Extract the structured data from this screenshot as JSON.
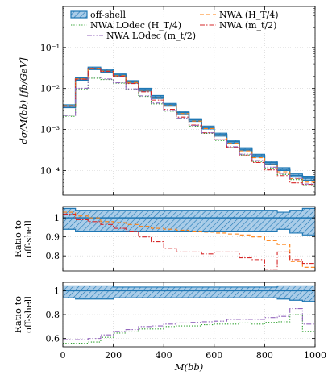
{
  "chart_data": {
    "type": "line",
    "step": true,
    "x_edges": [
      0,
      50,
      100,
      150,
      200,
      250,
      300,
      350,
      400,
      450,
      500,
      550,
      600,
      650,
      700,
      750,
      800,
      850,
      900,
      950,
      1000
    ],
    "xlabel": "M(bb)",
    "xlim": [
      0,
      1000
    ],
    "xticks": [
      0,
      200,
      400,
      600,
      800,
      1000
    ],
    "legend_location": "top",
    "grid": true,
    "colors": {
      "offshell": "#1f77b4",
      "offshell_fill": "#a9cce8",
      "nwa_ht4": "#ff7f0e",
      "nwa_mt2": "#d62728",
      "lodec_ht4": "#2ca02c",
      "lodec_mt2": "#9467bd"
    },
    "panels": [
      {
        "id": "main",
        "ylabel": "dσ/M(bb) [fb/GeV]",
        "log": true,
        "ylim": [
          2.5e-05,
          1.0
        ],
        "yticks": [
          {
            "value": 0.0001,
            "label": "10⁻⁴"
          },
          {
            "value": 0.001,
            "label": "10⁻³"
          },
          {
            "value": 0.01,
            "label": "10⁻²"
          },
          {
            "value": 0.1,
            "label": "10⁻¹"
          }
        ],
        "series": [
          {
            "key": "offshell",
            "name": "off-shell",
            "style": "band",
            "values": [
              0.0037,
              0.017,
              0.031,
              0.027,
              0.021,
              0.0145,
              0.0094,
              0.0062,
              0.004,
              0.0026,
              0.0017,
              0.00112,
              0.00075,
              0.0005,
              0.00033,
              0.00023,
              0.000155,
              0.000108,
              7.5e-05,
              6.5e-05
            ],
            "band_low": [
              0.0034,
              0.0158,
              0.0288,
              0.025,
              0.0195,
              0.0135,
              0.0087,
              0.0057,
              0.0037,
              0.0024,
              0.00157,
              0.00103,
              0.00069,
              0.00046,
              0.000305,
              0.000212,
              0.000143,
              0.0001,
              6.9e-05,
              5.8e-05
            ],
            "band_high": [
              0.004,
              0.0183,
              0.0332,
              0.029,
              0.0225,
              0.0155,
              0.0101,
              0.0067,
              0.0043,
              0.0028,
              0.00183,
              0.00121,
              0.00081,
              0.00054,
              0.000357,
              0.000248,
              0.000168,
              0.000117,
              8.2e-05,
              7.2e-05
            ]
          },
          {
            "key": "nwa_ht4",
            "name": "NWA (H_T/4)",
            "style": "dashed",
            "values": [
              0.0038,
              0.0172,
              0.031,
              0.0265,
              0.0205,
              0.014,
              0.0091,
              0.0059,
              0.0038,
              0.00245,
              0.0016,
              0.00105,
              0.0007,
              0.00046,
              0.0003,
              0.000205,
              0.000138,
              9.3e-05,
              6.3e-05,
              5.2e-05
            ]
          },
          {
            "key": "lodec_ht4",
            "name": "NWA LOdec (H_T/4)",
            "style": "dotted",
            "values": [
              0.0021,
              0.0095,
              0.0178,
              0.0165,
              0.0135,
              0.0095,
              0.0064,
              0.0042,
              0.0028,
              0.00183,
              0.0012,
              0.0008,
              0.00054,
              0.00036,
              0.00024,
              0.000166,
              0.000114,
              8e-05,
              6e-05,
              4.3e-05
            ]
          },
          {
            "key": "nwa_mt2",
            "name": "NWA (m_t/2)",
            "style": "dashdot",
            "values": [
              0.0037,
              0.0168,
              0.0305,
              0.026,
              0.0198,
              0.0132,
              0.0083,
              0.0052,
              0.0031,
              0.002,
              0.00128,
              0.00083,
              0.00056,
              0.00036,
              0.00023,
              0.000157,
              0.000103,
              7.5e-05,
              5e-05,
              4.6e-05
            ]
          },
          {
            "key": "lodec_mt2",
            "name": "NWA LOdec (m_t/2)",
            "style": "dashdotdot",
            "values": [
              0.0022,
              0.0101,
              0.019,
              0.017,
              0.0138,
              0.0098,
              0.0066,
              0.0044,
              0.0029,
              0.0019,
              0.00125,
              0.00083,
              0.00056,
              0.00038,
              0.00025,
              0.000175,
              0.00012,
              8.5e-05,
              6.4e-05,
              4.7e-05
            ]
          }
        ]
      },
      {
        "id": "ratio1",
        "ylabel": "Ratio to off-shell",
        "log": false,
        "ylim": [
          0.72,
          1.06
        ],
        "yticks": [
          {
            "value": 0.8,
            "label": "0.8"
          },
          {
            "value": 0.9,
            "label": "0.9"
          },
          {
            "value": 1.0,
            "label": "1"
          }
        ],
        "series": [
          {
            "key": "offshell",
            "style": "band",
            "values": [
              1,
              1,
              1,
              1,
              1,
              1,
              1,
              1,
              1,
              1,
              1,
              1,
              1,
              1,
              1,
              1,
              1,
              1,
              1,
              1
            ],
            "band_low": [
              0.94,
              0.93,
              0.93,
              0.93,
              0.93,
              0.93,
              0.93,
              0.93,
              0.93,
              0.93,
              0.93,
              0.93,
              0.93,
              0.93,
              0.93,
              0.93,
              0.93,
              0.94,
              0.92,
              0.91
            ],
            "band_high": [
              1.05,
              1.04,
              1.04,
              1.04,
              1.04,
              1.04,
              1.04,
              1.04,
              1.04,
              1.04,
              1.04,
              1.04,
              1.04,
              1.04,
              1.04,
              1.04,
              1.04,
              1.03,
              1.04,
              1.05
            ]
          },
          {
            "key": "nwa_ht4",
            "style": "dashed",
            "values": [
              1.03,
              1.01,
              1.0,
              0.98,
              0.975,
              0.965,
              0.955,
              0.945,
              0.94,
              0.935,
              0.93,
              0.925,
              0.92,
              0.915,
              0.91,
              0.9,
              0.88,
              0.86,
              0.77,
              0.74
            ]
          },
          {
            "key": "nwa_mt2",
            "style": "dashdot",
            "values": [
              1.02,
              0.99,
              0.98,
              0.965,
              0.945,
              0.93,
              0.9,
              0.875,
              0.84,
              0.82,
              0.82,
              0.81,
              0.82,
              0.82,
              0.79,
              0.78,
              0.73,
              0.82,
              0.78,
              0.76
            ]
          }
        ]
      },
      {
        "id": "ratio2",
        "ylabel": "Ratio to off-shell",
        "log": false,
        "ylim": [
          0.53,
          1.07
        ],
        "yticks": [
          {
            "value": 0.6,
            "label": "0.6"
          },
          {
            "value": 0.8,
            "label": "0.8"
          },
          {
            "value": 1.0,
            "label": "1"
          }
        ],
        "series": [
          {
            "key": "offshell",
            "style": "band",
            "values": [
              1,
              1,
              1,
              1,
              1,
              1,
              1,
              1,
              1,
              1,
              1,
              1,
              1,
              1,
              1,
              1,
              1,
              1,
              1,
              1
            ],
            "band_low": [
              0.94,
              0.93,
              0.93,
              0.93,
              0.94,
              0.94,
              0.94,
              0.94,
              0.94,
              0.94,
              0.94,
              0.94,
              0.94,
              0.94,
              0.94,
              0.94,
              0.94,
              0.93,
              0.92,
              0.91
            ],
            "band_high": [
              1.04,
              1.04,
              1.04,
              1.04,
              1.03,
              1.03,
              1.03,
              1.03,
              1.03,
              1.03,
              1.03,
              1.03,
              1.03,
              1.03,
              1.03,
              1.03,
              1.03,
              1.04,
              1.04,
              1.04
            ]
          },
          {
            "key": "lodec_ht4",
            "style": "dotted",
            "values": [
              0.56,
              0.56,
              0.57,
              0.61,
              0.645,
              0.655,
              0.68,
              0.68,
              0.7,
              0.705,
              0.705,
              0.715,
              0.72,
              0.72,
              0.73,
              0.72,
              0.735,
              0.74,
              0.8,
              0.66
            ]
          },
          {
            "key": "lodec_mt2",
            "style": "dashdotdot",
            "values": [
              0.59,
              0.59,
              0.6,
              0.63,
              0.66,
              0.675,
              0.7,
              0.705,
              0.72,
              0.73,
              0.735,
              0.74,
              0.745,
              0.76,
              0.76,
              0.76,
              0.775,
              0.785,
              0.85,
              0.72
            ]
          }
        ]
      }
    ]
  }
}
